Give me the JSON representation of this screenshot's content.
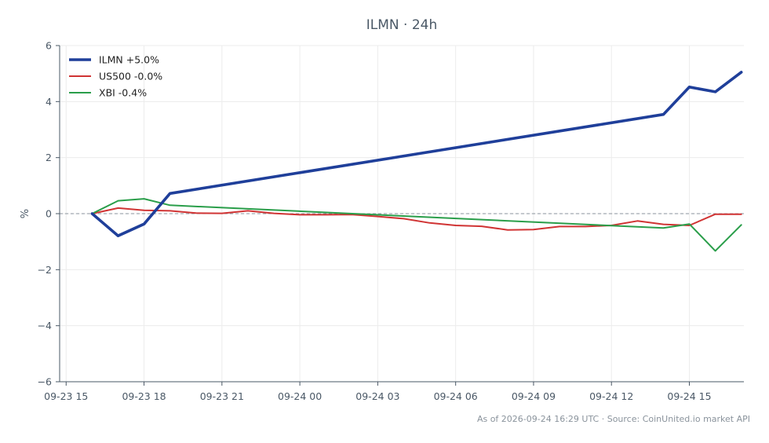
{
  "chart_data": {
    "type": "line",
    "title": "ILMN · 24h",
    "xlabel": "",
    "ylabel": "%",
    "ylim": [
      -6,
      6
    ],
    "yticks": [
      -6,
      -4,
      -2,
      0,
      2,
      4,
      6
    ],
    "ytick_labels": [
      "−6",
      "−4",
      "−2",
      "0",
      "2",
      "4",
      "6"
    ],
    "xlim": [
      -0.25,
      26.1
    ],
    "xticks": [
      0,
      3,
      6,
      9,
      12,
      15,
      18,
      21,
      24
    ],
    "xtick_labels": [
      "09-23 15",
      "09-23 18",
      "09-23 21",
      "09-24 00",
      "09-24 03",
      "09-24 06",
      "09-24 09",
      "09-24 12",
      "09-24 15"
    ],
    "grid": true,
    "zero_line": true,
    "legend_position": "top-left",
    "series": [
      {
        "name": "ILMN +5.0%",
        "color": "#1f3f9a",
        "width": 3.6,
        "x": [
          1,
          2,
          3,
          4,
          23,
          24,
          25,
          26
        ],
        "values": [
          0.0,
          -0.79,
          -0.37,
          0.72,
          3.54,
          4.52,
          4.35,
          5.05
        ]
      },
      {
        "name": "US500 -0.0%",
        "color": "#d03434",
        "width": 2,
        "x": [
          1,
          2,
          3,
          4,
          5,
          6,
          7,
          8,
          9,
          10,
          11,
          12,
          13,
          14,
          15,
          16,
          17,
          18,
          19,
          20,
          21,
          22,
          23,
          24,
          25,
          26
        ],
        "values": [
          0.0,
          0.2,
          0.12,
          0.1,
          0.02,
          0.01,
          0.1,
          0.01,
          -0.04,
          -0.04,
          -0.03,
          -0.1,
          -0.18,
          -0.33,
          -0.42,
          -0.45,
          -0.58,
          -0.57,
          -0.46,
          -0.46,
          -0.42,
          -0.26,
          -0.38,
          -0.42,
          -0.02,
          -0.02
        ]
      },
      {
        "name": "XBI -0.4%",
        "color": "#2a9e4a",
        "width": 2,
        "x": [
          1,
          2,
          3,
          4,
          22,
          23,
          24,
          25,
          26
        ],
        "values": [
          0.0,
          0.46,
          0.53,
          0.3,
          -0.47,
          -0.51,
          -0.37,
          -1.33,
          -0.4
        ]
      }
    ]
  },
  "footer": {
    "text": "As of 2026-09-24 16:29 UTC · Source: CoinUnited.io market API"
  }
}
